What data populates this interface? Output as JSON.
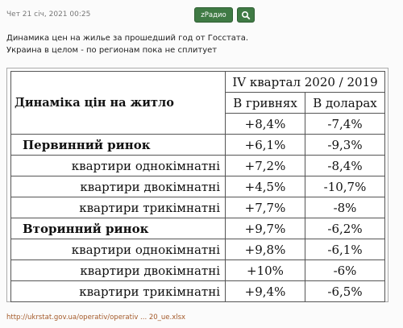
{
  "post": {
    "timestamp": "Чет 21 січ, 2021 00:25",
    "radio_button": "zРадио",
    "search_icon": "magnifier-gear-icon",
    "lines": [
      "Динамика цен на жилье за прошедший год от Госстата.",
      "Украина в целом - по регионам пока не сплитует"
    ],
    "link_text": "http://ukrstat.gov.ua/operativ/operativ ... 20_ue.xlsx",
    "accent_color": "#3f7a44"
  },
  "table": {
    "title": "Динаміка цін на житло",
    "period": "IV квартал 2020 / 2019",
    "col_uah": "В гривнях",
    "col_usd": "В доларах",
    "rows": [
      {
        "label": "",
        "uah": "+8,4%",
        "usd": "-7,4%"
      },
      {
        "label": "Первинний ринок",
        "uah": "+6,1%",
        "usd": "-9,3%"
      },
      {
        "label": "квартири однокімнатні",
        "uah": "+7,2%",
        "usd": "-8,4%"
      },
      {
        "label": "квартири двокімнатні",
        "uah": "+4,5%",
        "usd": "-10,7%"
      },
      {
        "label": "квартири трикімнатні",
        "uah": "+7,7%",
        "usd": "-8%"
      },
      {
        "label": "Вторинний ринок",
        "uah": "+9,7%",
        "usd": "-6,2%"
      },
      {
        "label": "квартири однокімнатні",
        "uah": "+9,8%",
        "usd": "-6,1%"
      },
      {
        "label": "квартири двокімнатні",
        "uah": "+10%",
        "usd": "-6%"
      },
      {
        "label": "квартири трикімнатні",
        "uah": "+9,4%",
        "usd": "-6,5%"
      }
    ]
  }
}
